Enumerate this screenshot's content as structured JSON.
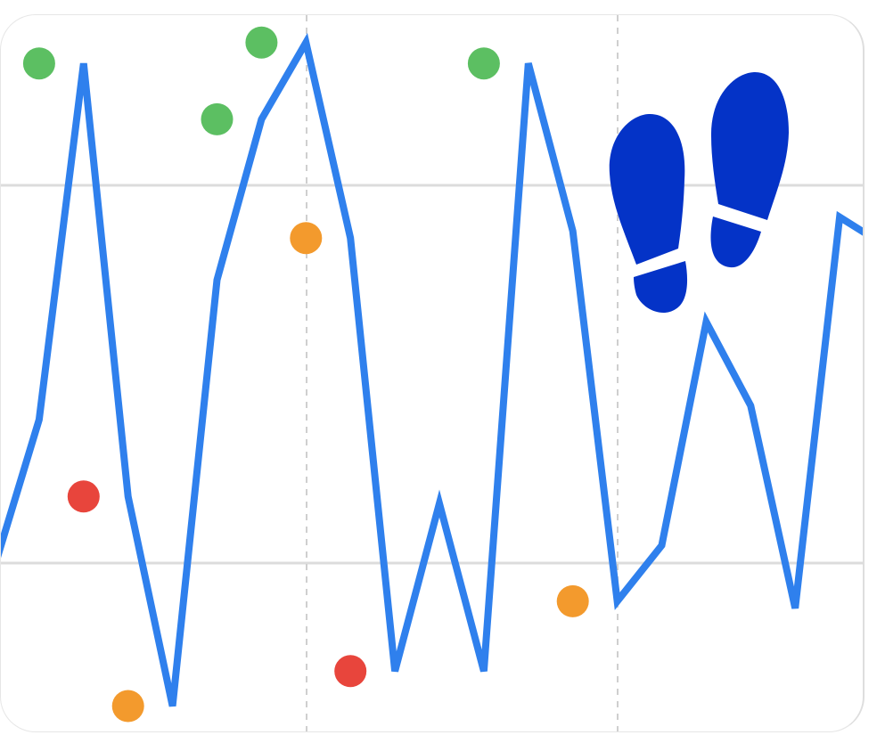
{
  "chart_data": {
    "type": "line",
    "title": "",
    "xlabel": "",
    "ylabel": "",
    "grid": {
      "horizontal": "solid",
      "vertical": "dashed"
    },
    "ylim": [
      0,
      100
    ],
    "x": [
      0,
      1,
      2,
      3,
      4,
      5,
      6,
      7,
      8,
      9,
      10,
      11,
      12,
      13,
      14,
      15,
      16,
      17,
      18,
      19,
      20
    ],
    "series": [
      {
        "color": "#2f80ed",
        "values": [
          23,
          44,
          95,
          33,
          3,
          64,
          87,
          98,
          70,
          8,
          32,
          8,
          95,
          71,
          18,
          26,
          58,
          46,
          17,
          73,
          69
        ]
      }
    ],
    "markers": [
      {
        "x": 1.0,
        "value": 95,
        "color": "#5cbf62"
      },
      {
        "x": 2.0,
        "value": 33,
        "color": "#e8453c"
      },
      {
        "x": 3.0,
        "value": 3,
        "color": "#f39a2d"
      },
      {
        "x": 5.0,
        "value": 87,
        "color": "#5cbf62"
      },
      {
        "x": 6.0,
        "value": 98,
        "color": "#5cbf62"
      },
      {
        "x": 7.0,
        "value": 70,
        "color": "#f39a2d"
      },
      {
        "x": 8.0,
        "value": 8,
        "color": "#e8453c"
      },
      {
        "x": 11.0,
        "value": 95,
        "color": "#5cbf62"
      },
      {
        "x": 13.0,
        "value": 18,
        "color": "#f39a2d"
      }
    ],
    "marker_colors": {
      "high": "#5cbf62",
      "mid": "#f39a2d",
      "low": "#e8453c"
    }
  },
  "overlay": {
    "icon": "footprints-icon",
    "color": "#0433c7"
  }
}
